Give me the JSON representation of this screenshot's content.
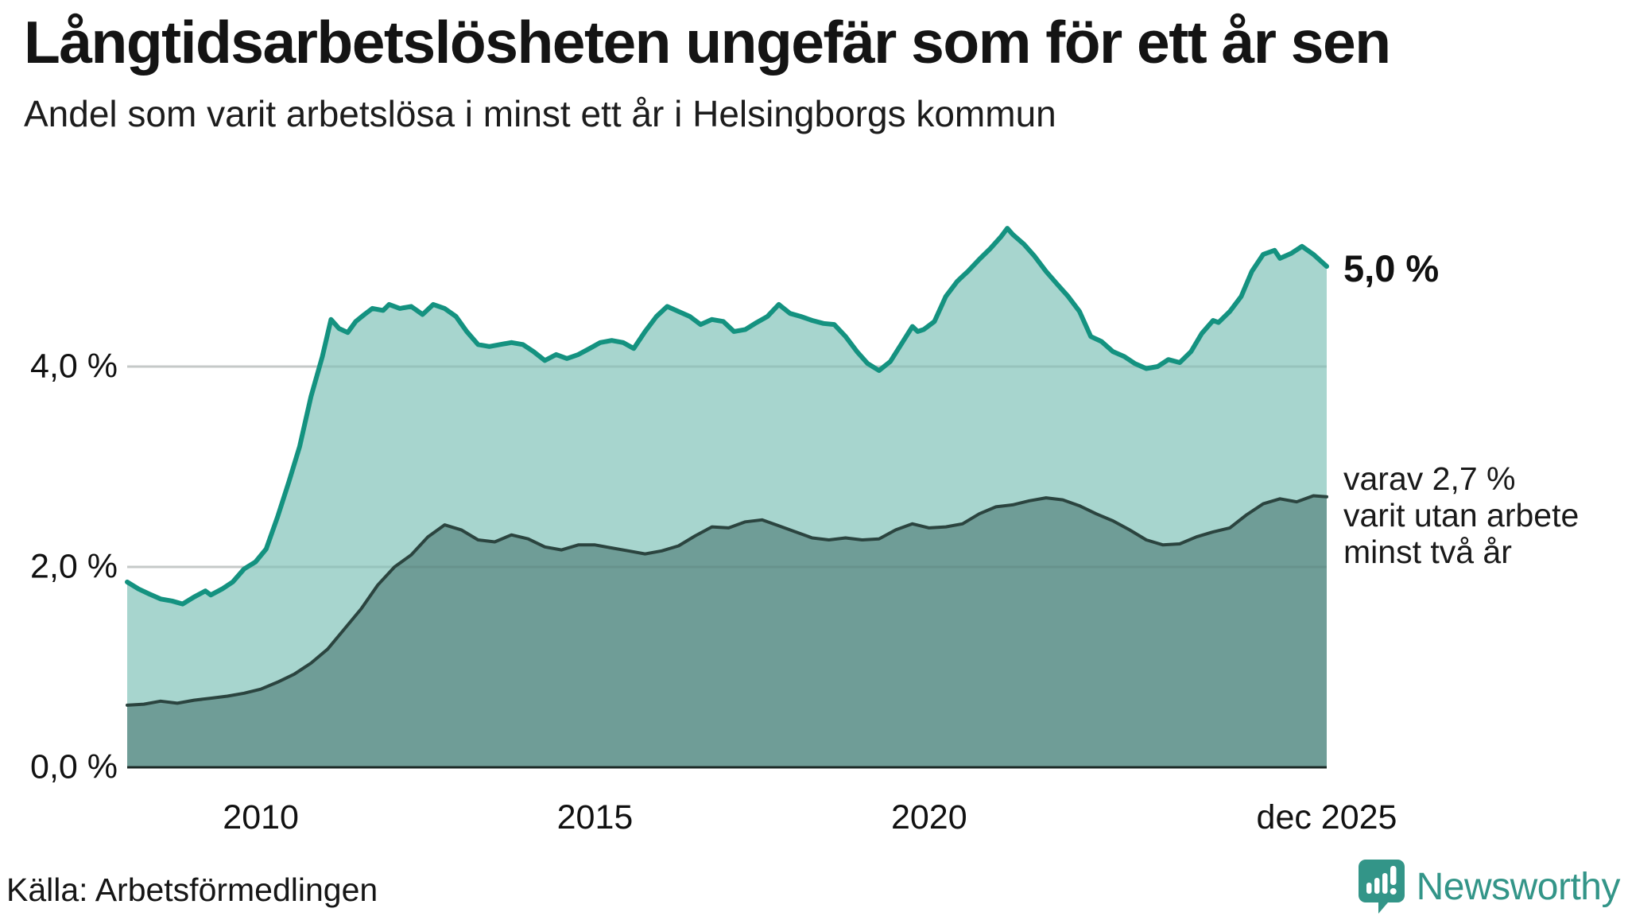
{
  "header": {
    "title": "Långtidsarbetslösheten ungefär som för ett år sen",
    "subtitle": "Andel som varit arbetslösa i minst ett år i Helsingborgs kommun"
  },
  "annotations": {
    "total_end_label": "5,0 %",
    "secondary_end_lines": [
      "varav 2,7 %",
      "varit utan arbete",
      "minst två år"
    ]
  },
  "footer": {
    "source": "Källa: Arbetsförmedlingen",
    "brand_name": "Newsworthy",
    "brand_color": "#339588"
  },
  "chart_data": {
    "type": "area",
    "title": "Långtidsarbetslösheten ungefär som för ett år sen",
    "subtitle": "Andel som varit arbetslösa i minst ett år i Helsingborgs kommun",
    "unit": "%",
    "x_range": [
      2008.0,
      2025.95
    ],
    "ylim": [
      0,
      5.6
    ],
    "grid": "horizontal",
    "gridline_values": [
      2,
      4
    ],
    "y_ticks": [
      {
        "value": 0,
        "label": "0,0 %"
      },
      {
        "value": 2,
        "label": "2,0 %"
      },
      {
        "value": 4,
        "label": "4,0 %"
      }
    ],
    "x_ticks": [
      {
        "t": 2010,
        "label": "2010"
      },
      {
        "t": 2015,
        "label": "2015"
      },
      {
        "t": 2020,
        "label": "2020"
      },
      {
        "t": 2025.95,
        "label": "dec 2025"
      }
    ],
    "colors": {
      "grid_under": "#dcdcdc",
      "grid_over": "rgba(60,85,80,0.14)",
      "baseline": "#1c2a27"
    },
    "series": [
      {
        "name": "Arbetslösa minst ett år",
        "end_value": 5.0,
        "end_label": "5,0 %",
        "fill": "#a7d5ce",
        "line": "#149280",
        "line_width": 6,
        "points": [
          [
            2008.0,
            1.85
          ],
          [
            2008.17,
            1.78
          ],
          [
            2008.33,
            1.73
          ],
          [
            2008.5,
            1.68
          ],
          [
            2008.67,
            1.66
          ],
          [
            2008.83,
            1.63
          ],
          [
            2009.0,
            1.7
          ],
          [
            2009.17,
            1.76
          ],
          [
            2009.25,
            1.72
          ],
          [
            2009.42,
            1.78
          ],
          [
            2009.58,
            1.85
          ],
          [
            2009.75,
            1.98
          ],
          [
            2009.92,
            2.05
          ],
          [
            2010.08,
            2.18
          ],
          [
            2010.25,
            2.5
          ],
          [
            2010.42,
            2.85
          ],
          [
            2010.58,
            3.2
          ],
          [
            2010.75,
            3.7
          ],
          [
            2010.92,
            4.1
          ],
          [
            2011.05,
            4.47
          ],
          [
            2011.17,
            4.38
          ],
          [
            2011.3,
            4.34
          ],
          [
            2011.42,
            4.45
          ],
          [
            2011.55,
            4.52
          ],
          [
            2011.67,
            4.58
          ],
          [
            2011.83,
            4.56
          ],
          [
            2011.92,
            4.62
          ],
          [
            2012.08,
            4.58
          ],
          [
            2012.25,
            4.6
          ],
          [
            2012.42,
            4.52
          ],
          [
            2012.58,
            4.62
          ],
          [
            2012.75,
            4.58
          ],
          [
            2012.92,
            4.5
          ],
          [
            2013.08,
            4.35
          ],
          [
            2013.25,
            4.22
          ],
          [
            2013.42,
            4.2
          ],
          [
            2013.58,
            4.22
          ],
          [
            2013.75,
            4.24
          ],
          [
            2013.92,
            4.22
          ],
          [
            2014.08,
            4.15
          ],
          [
            2014.25,
            4.06
          ],
          [
            2014.42,
            4.12
          ],
          [
            2014.58,
            4.08
          ],
          [
            2014.75,
            4.12
          ],
          [
            2014.92,
            4.18
          ],
          [
            2015.08,
            4.24
          ],
          [
            2015.25,
            4.26
          ],
          [
            2015.42,
            4.24
          ],
          [
            2015.58,
            4.18
          ],
          [
            2015.75,
            4.35
          ],
          [
            2015.92,
            4.5
          ],
          [
            2016.08,
            4.6
          ],
          [
            2016.25,
            4.55
          ],
          [
            2016.42,
            4.5
          ],
          [
            2016.58,
            4.42
          ],
          [
            2016.75,
            4.47
          ],
          [
            2016.92,
            4.45
          ],
          [
            2017.08,
            4.35
          ],
          [
            2017.25,
            4.37
          ],
          [
            2017.42,
            4.44
          ],
          [
            2017.58,
            4.5
          ],
          [
            2017.75,
            4.62
          ],
          [
            2017.92,
            4.53
          ],
          [
            2018.08,
            4.5
          ],
          [
            2018.25,
            4.46
          ],
          [
            2018.42,
            4.43
          ],
          [
            2018.58,
            4.42
          ],
          [
            2018.75,
            4.3
          ],
          [
            2018.92,
            4.15
          ],
          [
            2019.08,
            4.03
          ],
          [
            2019.25,
            3.96
          ],
          [
            2019.42,
            4.05
          ],
          [
            2019.58,
            4.22
          ],
          [
            2019.75,
            4.4
          ],
          [
            2019.83,
            4.35
          ],
          [
            2019.92,
            4.37
          ],
          [
            2020.08,
            4.45
          ],
          [
            2020.25,
            4.7
          ],
          [
            2020.42,
            4.85
          ],
          [
            2020.5,
            4.9
          ],
          [
            2020.58,
            4.95
          ],
          [
            2020.75,
            5.07
          ],
          [
            2020.92,
            5.18
          ],
          [
            2021.08,
            5.3
          ],
          [
            2021.17,
            5.38
          ],
          [
            2021.25,
            5.32
          ],
          [
            2021.42,
            5.22
          ],
          [
            2021.58,
            5.1
          ],
          [
            2021.75,
            4.95
          ],
          [
            2021.92,
            4.82
          ],
          [
            2022.08,
            4.7
          ],
          [
            2022.25,
            4.55
          ],
          [
            2022.42,
            4.3
          ],
          [
            2022.58,
            4.25
          ],
          [
            2022.75,
            4.15
          ],
          [
            2022.92,
            4.1
          ],
          [
            2023.08,
            4.03
          ],
          [
            2023.25,
            3.98
          ],
          [
            2023.42,
            4.0
          ],
          [
            2023.58,
            4.07
          ],
          [
            2023.75,
            4.04
          ],
          [
            2023.92,
            4.15
          ],
          [
            2024.08,
            4.33
          ],
          [
            2024.25,
            4.46
          ],
          [
            2024.33,
            4.44
          ],
          [
            2024.5,
            4.55
          ],
          [
            2024.67,
            4.7
          ],
          [
            2024.83,
            4.95
          ],
          [
            2025.0,
            5.12
          ],
          [
            2025.17,
            5.16
          ],
          [
            2025.25,
            5.08
          ],
          [
            2025.42,
            5.13
          ],
          [
            2025.58,
            5.2
          ],
          [
            2025.75,
            5.12
          ],
          [
            2025.95,
            5.0
          ]
        ]
      },
      {
        "name": "varav utan arbete minst två år",
        "end_value": 2.7,
        "fill": "#6f9d97",
        "line": "#2b443f",
        "line_width": 4,
        "points": [
          [
            2008.0,
            0.62
          ],
          [
            2008.25,
            0.63
          ],
          [
            2008.5,
            0.66
          ],
          [
            2008.75,
            0.64
          ],
          [
            2009.0,
            0.67
          ],
          [
            2009.25,
            0.69
          ],
          [
            2009.5,
            0.71
          ],
          [
            2009.75,
            0.74
          ],
          [
            2010.0,
            0.78
          ],
          [
            2010.25,
            0.85
          ],
          [
            2010.5,
            0.93
          ],
          [
            2010.75,
            1.04
          ],
          [
            2011.0,
            1.18
          ],
          [
            2011.25,
            1.38
          ],
          [
            2011.5,
            1.58
          ],
          [
            2011.75,
            1.82
          ],
          [
            2012.0,
            2.0
          ],
          [
            2012.25,
            2.12
          ],
          [
            2012.5,
            2.3
          ],
          [
            2012.75,
            2.42
          ],
          [
            2013.0,
            2.37
          ],
          [
            2013.25,
            2.27
          ],
          [
            2013.5,
            2.25
          ],
          [
            2013.75,
            2.32
          ],
          [
            2014.0,
            2.28
          ],
          [
            2014.25,
            2.2
          ],
          [
            2014.5,
            2.17
          ],
          [
            2014.75,
            2.22
          ],
          [
            2015.0,
            2.22
          ],
          [
            2015.25,
            2.19
          ],
          [
            2015.5,
            2.16
          ],
          [
            2015.75,
            2.13
          ],
          [
            2016.0,
            2.16
          ],
          [
            2016.25,
            2.21
          ],
          [
            2016.5,
            2.31
          ],
          [
            2016.75,
            2.4
          ],
          [
            2017.0,
            2.39
          ],
          [
            2017.25,
            2.45
          ],
          [
            2017.5,
            2.47
          ],
          [
            2017.75,
            2.41
          ],
          [
            2018.0,
            2.35
          ],
          [
            2018.25,
            2.29
          ],
          [
            2018.5,
            2.27
          ],
          [
            2018.75,
            2.29
          ],
          [
            2019.0,
            2.27
          ],
          [
            2019.25,
            2.28
          ],
          [
            2019.5,
            2.37
          ],
          [
            2019.75,
            2.43
          ],
          [
            2020.0,
            2.39
          ],
          [
            2020.25,
            2.4
          ],
          [
            2020.5,
            2.43
          ],
          [
            2020.75,
            2.53
          ],
          [
            2021.0,
            2.6
          ],
          [
            2021.25,
            2.62
          ],
          [
            2021.5,
            2.66
          ],
          [
            2021.75,
            2.69
          ],
          [
            2022.0,
            2.67
          ],
          [
            2022.25,
            2.61
          ],
          [
            2022.5,
            2.53
          ],
          [
            2022.75,
            2.46
          ],
          [
            2023.0,
            2.37
          ],
          [
            2023.25,
            2.27
          ],
          [
            2023.5,
            2.22
          ],
          [
            2023.75,
            2.23
          ],
          [
            2024.0,
            2.3
          ],
          [
            2024.25,
            2.35
          ],
          [
            2024.5,
            2.39
          ],
          [
            2024.75,
            2.52
          ],
          [
            2025.0,
            2.63
          ],
          [
            2025.25,
            2.68
          ],
          [
            2025.5,
            2.65
          ],
          [
            2025.75,
            2.71
          ],
          [
            2025.95,
            2.7
          ]
        ]
      }
    ]
  }
}
